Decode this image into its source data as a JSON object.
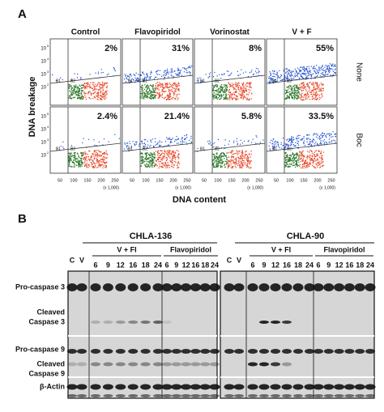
{
  "panel_a": {
    "label": "A",
    "columns": [
      "Control",
      "Flavopiridol",
      "Vorinostat",
      "V + F"
    ],
    "rows": [
      "None",
      "Boc"
    ],
    "percentages": [
      [
        "2%",
        "31%",
        "8%",
        "55%"
      ],
      [
        "2.4%",
        "21.4%",
        "5.8%",
        "33.5%"
      ]
    ],
    "y_axis_label": "DNA breakage",
    "x_axis_label": "DNA content",
    "x_ticks": [
      "50",
      "100",
      "150",
      "200",
      "250"
    ],
    "x_unit": "(x 1,000)",
    "y_ticks": [
      {
        "base": "10",
        "exp": "5"
      },
      {
        "base": "10",
        "exp": "4"
      },
      {
        "base": "10",
        "exp": "3"
      },
      {
        "base": "10",
        "exp": "2"
      }
    ],
    "gate_labels": [
      "B1",
      "B2"
    ]
  },
  "panel_b": {
    "label": "B",
    "cell_lines": [
      {
        "name": "CHLA-136",
        "controls": [
          "C",
          "V"
        ],
        "groups": [
          {
            "name": "V + FI",
            "times": [
              "6",
              "9",
              "12",
              "16",
              "18",
              "24"
            ]
          },
          {
            "name": "Flavopiridol",
            "times": [
              "6",
              "9",
              "12",
              "16",
              "18",
              "24"
            ]
          }
        ]
      },
      {
        "name": "CHLA-90",
        "controls": [
          "C",
          "V"
        ],
        "groups": [
          {
            "name": "V + FI",
            "times": [
              "6",
              "9",
              "12",
              "16",
              "18",
              "24"
            ]
          },
          {
            "name": "Flavopiridol",
            "times": [
              "6",
              "9",
              "12",
              "16",
              "18",
              "24"
            ]
          }
        ]
      }
    ],
    "row_labels": [
      [
        "Pro-caspase 3"
      ],
      [
        "Cleaved",
        "Caspase 3"
      ],
      [
        "Pro-caspase 9"
      ],
      [
        "Cleaved",
        "Caspase 9"
      ],
      [
        "β-Actin"
      ]
    ]
  }
}
